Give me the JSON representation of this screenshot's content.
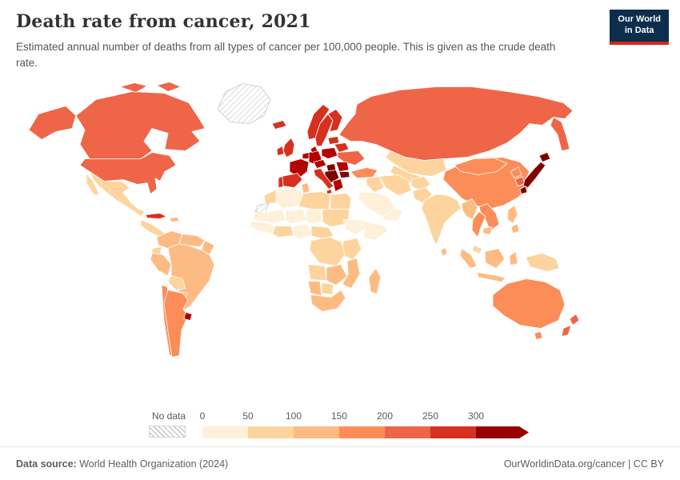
{
  "logo": {
    "line1": "Our World",
    "line2": "in Data",
    "bg_color": "#0d2d4d",
    "accent_color": "#d7261d"
  },
  "header": {
    "title": "Death rate from cancer, 2021",
    "subtitle": "Estimated annual number of deaths from all types of cancer per 100,000 people. This is given as the crude death rate."
  },
  "footer": {
    "source_label": "Data source:",
    "source_value": " World Health Organization (2024)",
    "credit": "OurWorldinData.org/cancer | CC BY"
  },
  "chart_data": {
    "type": "choropleth-map",
    "title": "Death rate from cancer, 2021",
    "year": "2021",
    "unit": "deaths per 100,000 people",
    "legend": {
      "no_data_label": "No data",
      "ticks": [
        "0",
        "50",
        "100",
        "150",
        "200",
        "250",
        "300"
      ],
      "bin_colors": [
        "#fef0d9",
        "#fdd49e",
        "#fdbb84",
        "#fc8d59",
        "#ef6548",
        "#d7301f"
      ],
      "arrow_color": "#990000"
    },
    "regions": {
      "usa": "#ef6548",
      "canada": "#ef6548",
      "greenland": "no_data",
      "mexico": "#fdd49e",
      "central-america": "#fdd49e",
      "cuba": "#d7301f",
      "hispaniola": "#fdbb84",
      "iceland": "#d7301f",
      "colombia": "#fdbb84",
      "venezuela": "#fdbb84",
      "guianas": "#fdbb84",
      "ecuador": "#fdd49e",
      "peru": "#fdbb84",
      "brazil": "#fdbb84",
      "bolivia": "#fdd49e",
      "paraguay": "#fdbb84",
      "chile": "#fc8d59",
      "argentina": "#fc8d59",
      "uruguay": "#b30000",
      "norway": "#d7301f",
      "sweden": "#d7301f",
      "finland": "#d7301f",
      "denmark": "#b30000",
      "uk": "#d7301f",
      "ireland": "#d7301f",
      "france": "#b30000",
      "spain": "#d7301f",
      "portugal": "#d7301f",
      "germany": "#b30000",
      "benelux": "#b30000",
      "central-europe": "#b30000",
      "italy": "#d7301f",
      "poland": "#b30000",
      "hungary": "#7f0000",
      "balkans": "#7f0000",
      "greece": "#b30000",
      "romania": "#b30000",
      "bulgaria": "#7f0000",
      "ukraine": "#ef6548",
      "belarus": "#d7301f",
      "baltics": "#d7301f",
      "russia": "#ef6548",
      "kazakhstan": "#fdd49e",
      "central-asia": "#fdd49e",
      "turkey": "#fc8d59",
      "iraq-syria": "#fdd49e",
      "saudi": "#fef0d9",
      "yemen-oman": "#fef0d9",
      "iran": "#fdd49e",
      "afghanistan": "#fdd49e",
      "pakistan": "#fdd49e",
      "india": "#fdd49e",
      "sri-lanka": "#fdbb84",
      "china": "#fc8d59",
      "mongolia": "#fc8d59",
      "north-korea": "#fc8d59",
      "south-korea": "#ef6548",
      "japan": "#7f0000",
      "myanmar": "#fdbb84",
      "thailand": "#fc8d59",
      "vietnam": "#fc8d59",
      "cambodia": "#fdbb84",
      "malaysia": "#fdd49e",
      "philippines": "#fdbb84",
      "indonesia": "#fdbb84",
      "new-guinea": "#fdd49e",
      "morocco": "#fdd49e",
      "western-sahara": "no_data",
      "algeria": "#fef0d9",
      "tunisia": "#fdbb84",
      "libya": "#fdd49e",
      "egypt": "#fdd49e",
      "mauritania": "#fef0d9",
      "mali": "#fef0d9",
      "niger": "#fef0d9",
      "chad": "#fef0d9",
      "sudan": "#fdd49e",
      "west-africa": "#fef0d9",
      "ghana-ivory": "#fdd49e",
      "nigeria": "#fef0d9",
      "cameroon-car": "#fdd49e",
      "ethiopia": "#fef0d9",
      "somalia": "#fef0d9",
      "kenya-tanzania": "#fdd49e",
      "drc": "#fdd49e",
      "angola": "#fdd49e",
      "zambia-zimbabwe": "#fdbb84",
      "mozambique": "#fdbb84",
      "namibia": "#fdbb84",
      "botswana": "#fdd49e",
      "south-africa": "#fdbb84",
      "madagascar": "#fdbb84",
      "australia": "#fc8d59",
      "new-zealand": "#ef6548"
    }
  }
}
